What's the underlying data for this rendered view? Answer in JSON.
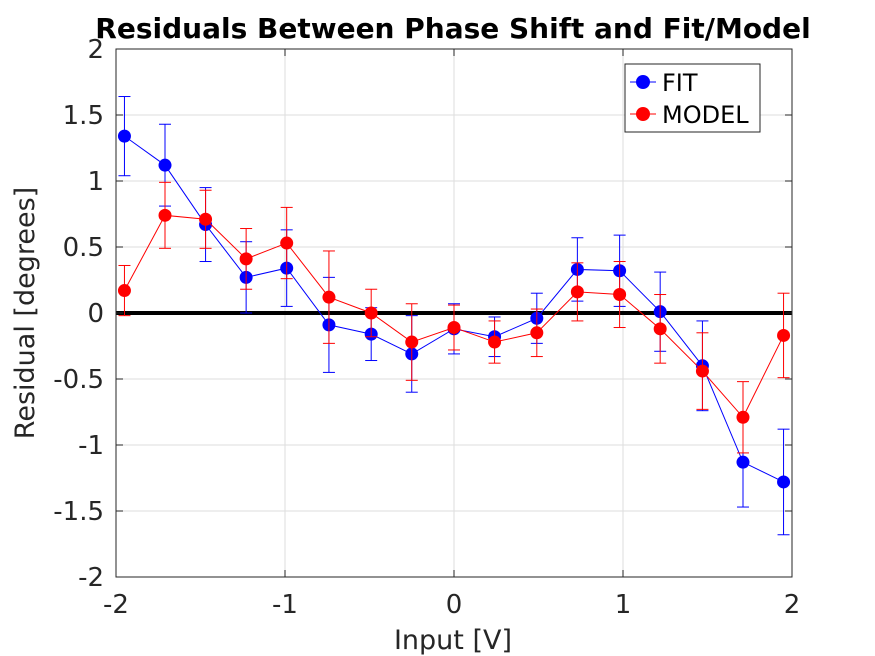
{
  "chart_data": {
    "type": "line",
    "title": "Residuals Between Phase Shift and Fit/Model",
    "xlabel": "Input [V]",
    "ylabel": "Residual [degrees]",
    "xlim": [
      -2,
      2
    ],
    "ylim": [
      -2,
      2
    ],
    "xticks": [
      -2,
      -1,
      0,
      1,
      2
    ],
    "xtick_labels": [
      "-2",
      "-1",
      "0",
      "1",
      "2"
    ],
    "yticks": [
      -2,
      -1.5,
      -1,
      -0.5,
      0,
      0.5,
      1,
      1.5,
      2
    ],
    "ytick_labels": [
      "-2",
      "-1.5",
      "-1",
      "-0.5",
      "0",
      "0.5",
      "1",
      "1.5",
      "2"
    ],
    "grid": true,
    "legend_position": "top-right",
    "reference_line": {
      "y": 0,
      "color": "#000000"
    },
    "x": [
      -1.95,
      -1.71,
      -1.47,
      -1.23,
      -0.99,
      -0.74,
      -0.49,
      -0.25,
      0.0,
      0.24,
      0.49,
      0.73,
      0.98,
      1.22,
      1.47,
      1.71,
      1.95
    ],
    "series": [
      {
        "name": "FIT",
        "color": "#0000ff",
        "values": [
          1.34,
          1.12,
          0.67,
          0.27,
          0.34,
          -0.09,
          -0.16,
          -0.31,
          -0.12,
          -0.18,
          -0.04,
          0.33,
          0.32,
          0.01,
          -0.4,
          -1.13,
          -1.28
        ],
        "errors": [
          0.3,
          0.31,
          0.28,
          0.27,
          0.29,
          0.36,
          0.2,
          0.29,
          0.19,
          0.15,
          0.19,
          0.24,
          0.27,
          0.3,
          0.34,
          0.34,
          0.4
        ]
      },
      {
        "name": "MODEL",
        "color": "#ff0000",
        "values": [
          0.17,
          0.74,
          0.71,
          0.41,
          0.53,
          0.12,
          0.0,
          -0.22,
          -0.11,
          -0.22,
          -0.15,
          0.16,
          0.14,
          -0.12,
          -0.44,
          -0.79,
          -0.17
        ],
        "errors": [
          0.19,
          0.25,
          0.22,
          0.23,
          0.27,
          0.35,
          0.18,
          0.29,
          0.17,
          0.16,
          0.18,
          0.22,
          0.25,
          0.26,
          0.29,
          0.27,
          0.32
        ]
      }
    ]
  }
}
